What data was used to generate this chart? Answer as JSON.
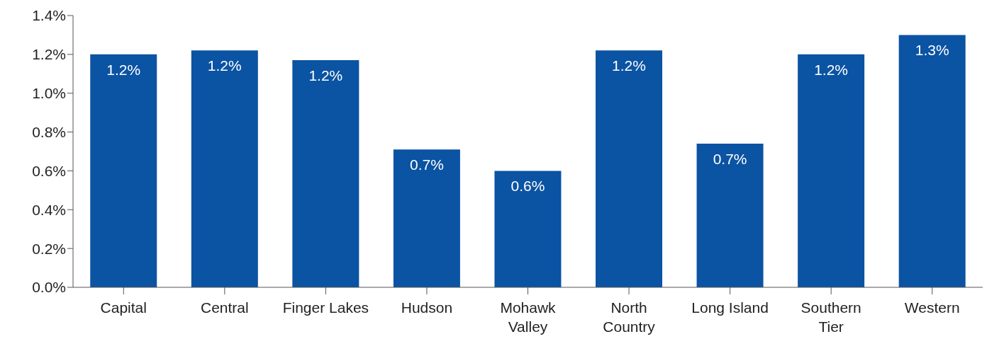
{
  "chart_data": {
    "type": "bar",
    "categories": [
      "Capital",
      "Central",
      "Finger Lakes",
      "Hudson",
      "Mohawk Valley",
      "North Country",
      "Long Island",
      "Southern Tier",
      "Western"
    ],
    "values": [
      1.2,
      1.22,
      1.17,
      0.71,
      0.6,
      1.22,
      0.74,
      1.2,
      1.3
    ],
    "value_labels": [
      "1.2%",
      "1.2%",
      "1.2%",
      "0.7%",
      "0.6%",
      "1.2%",
      "0.7%",
      "1.2%",
      "1.3%"
    ],
    "color": "#0b53a3",
    "ylim": [
      0,
      1.4
    ],
    "yticks": [
      {
        "value": 0,
        "label": "0.0%"
      },
      {
        "value": 0.2,
        "label": "0.2%"
      },
      {
        "value": 0.4,
        "label": "0.4%"
      },
      {
        "value": 0.6,
        "label": "0.6%"
      },
      {
        "value": 0.8,
        "label": "0.8%"
      },
      {
        "value": 1.0,
        "label": "1.0%"
      },
      {
        "value": 1.2,
        "label": "1.2%"
      },
      {
        "value": 1.4,
        "label": "1.4%"
      }
    ],
    "grid": false
  }
}
